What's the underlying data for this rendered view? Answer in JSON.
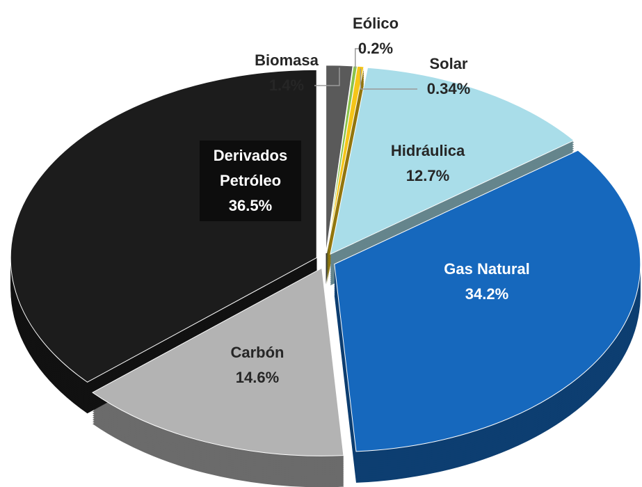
{
  "chart_data": {
    "type": "pie",
    "categories": [
      "Biomasa",
      "Eólico",
      "Solar",
      "Hidráulica",
      "Gas Natural",
      "Carbón",
      "Derivados Petróleo"
    ],
    "values": [
      1.4,
      0.2,
      0.34,
      12.7,
      34.2,
      14.6,
      36.5
    ],
    "value_labels": [
      "1.4%",
      "0.2%",
      "0.34%",
      "12.7%",
      "34.2%",
      "14.6%",
      "36.5%"
    ],
    "colors": [
      "#5a5a5a",
      "#8bc34a",
      "#f5c518",
      "#a9dde9",
      "#1668bd",
      "#b3b3b3",
      "#1c1c1c"
    ]
  }
}
